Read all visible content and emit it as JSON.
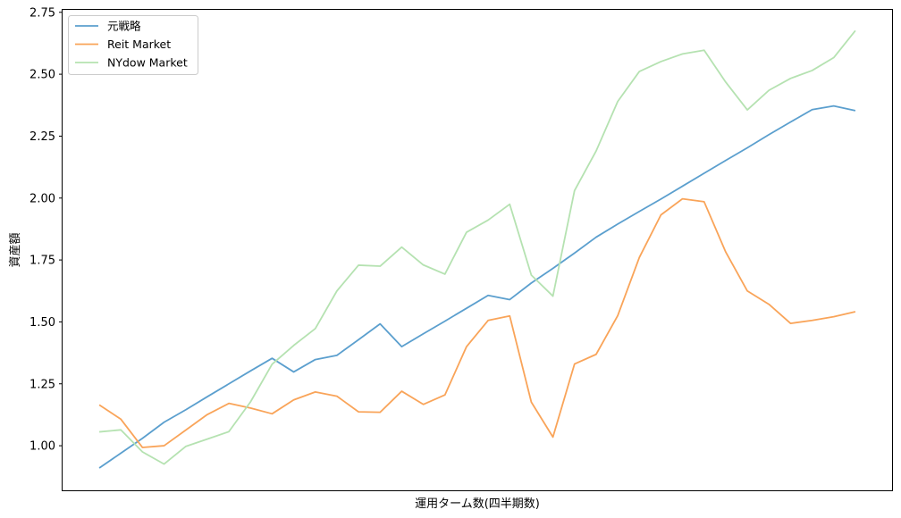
{
  "chart_data": {
    "type": "line",
    "title": "",
    "xlabel": "運用ターム数(四半期数)",
    "ylabel": "資産額",
    "ylim": [
      0.82,
      2.76
    ],
    "xlim": [
      -1.7,
      36.7
    ],
    "yticks": [
      "1.00",
      "1.25",
      "1.50",
      "1.75",
      "2.00",
      "2.25",
      "2.50",
      "2.75"
    ],
    "grid": false,
    "legend_position": "top-left",
    "x": [
      0,
      1,
      2,
      3,
      4,
      5,
      6,
      7,
      8,
      9,
      10,
      11,
      12,
      13,
      14,
      15,
      16,
      17,
      18,
      19,
      20,
      21,
      22,
      23,
      24,
      25,
      26,
      27,
      28,
      29,
      30,
      31,
      32,
      33,
      34,
      35
    ],
    "series": [
      {
        "name": "元戦略",
        "color": "#5b9fce",
        "values": [
          0.91,
          0.97,
          1.03,
          1.095,
          1.145,
          1.198,
          1.25,
          1.302,
          1.353,
          1.298,
          1.348,
          1.365,
          1.428,
          1.492,
          1.4,
          1.452,
          1.503,
          1.555,
          1.607,
          1.59,
          1.657,
          1.716,
          1.778,
          1.842,
          1.895,
          1.946,
          1.996,
          2.048,
          2.1,
          2.152,
          2.203,
          2.256,
          2.307,
          2.357,
          2.372,
          2.353
        ]
      },
      {
        "name": "Reit Market",
        "color": "#f9a459",
        "values": [
          1.165,
          1.107,
          0.993,
          1.0,
          1.063,
          1.126,
          1.171,
          1.152,
          1.129,
          1.185,
          1.217,
          1.2,
          1.137,
          1.135,
          1.22,
          1.167,
          1.205,
          1.4,
          1.506,
          1.524,
          1.176,
          1.035,
          1.33,
          1.369,
          1.525,
          1.76,
          1.932,
          1.997,
          1.985,
          1.782,
          1.625,
          1.571,
          1.494,
          1.506,
          1.521,
          1.541
        ]
      },
      {
        "name": "NYdow Market",
        "color": "#b5e2b1",
        "values": [
          1.056,
          1.064,
          0.975,
          0.926,
          0.997,
          1.027,
          1.057,
          1.177,
          1.329,
          1.405,
          1.473,
          1.625,
          1.729,
          1.725,
          1.802,
          1.73,
          1.693,
          1.862,
          1.911,
          1.975,
          1.689,
          1.604,
          2.03,
          2.19,
          2.39,
          2.511,
          2.551,
          2.582,
          2.597,
          2.468,
          2.356,
          2.435,
          2.483,
          2.515,
          2.567,
          2.676
        ]
      }
    ]
  }
}
